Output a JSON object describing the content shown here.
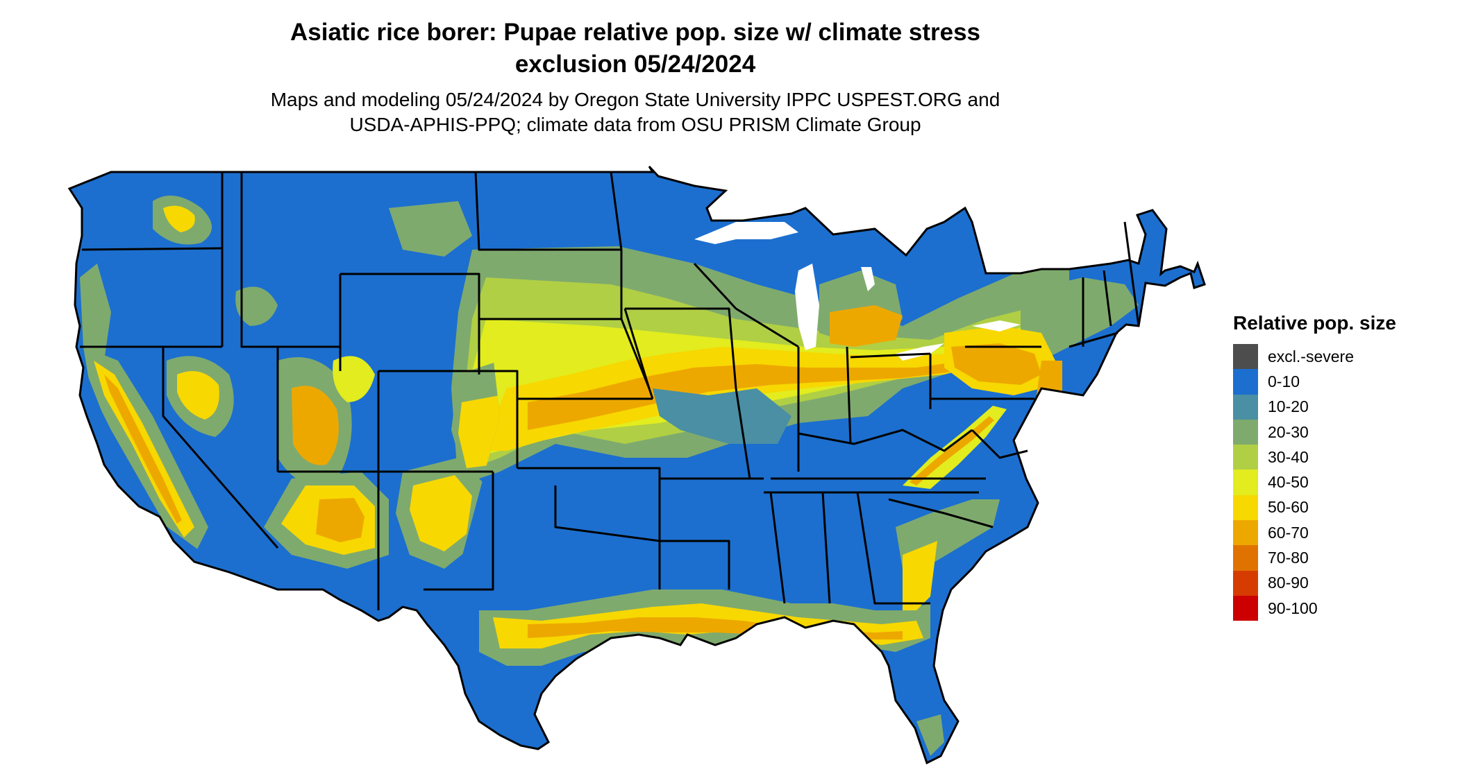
{
  "title": {
    "line1": "Asiatic rice borer: Pupae relative pop. size w/ climate stress",
    "line2": "exclusion 05/24/2024"
  },
  "subtitle": {
    "line1": "Maps and modeling 05/24/2024 by Oregon State University IPPC USPEST.ORG and",
    "line2": "USDA-APHIS-PPQ; climate data from OSU PRISM Climate Group"
  },
  "legend": {
    "title": "Relative pop. size",
    "items": [
      {
        "label": "excl.-severe",
        "color": "#4d4d4d"
      },
      {
        "label": "0-10",
        "color": "#1c6fcf"
      },
      {
        "label": "10-20",
        "color": "#4a8fa3"
      },
      {
        "label": "20-30",
        "color": "#7faa6e"
      },
      {
        "label": "30-40",
        "color": "#b0cf45"
      },
      {
        "label": "40-50",
        "color": "#e2ec1e"
      },
      {
        "label": "50-60",
        "color": "#f7d800"
      },
      {
        "label": "60-70",
        "color": "#eda800"
      },
      {
        "label": "70-80",
        "color": "#e07300"
      },
      {
        "label": "80-90",
        "color": "#d63c00"
      },
      {
        "label": "90-100",
        "color": "#cc0000"
      }
    ]
  },
  "map": {
    "region": "Contiguous United States",
    "base_color": "#1c6fcf",
    "border_color": "#000000",
    "lake_color": "#ffffff"
  }
}
